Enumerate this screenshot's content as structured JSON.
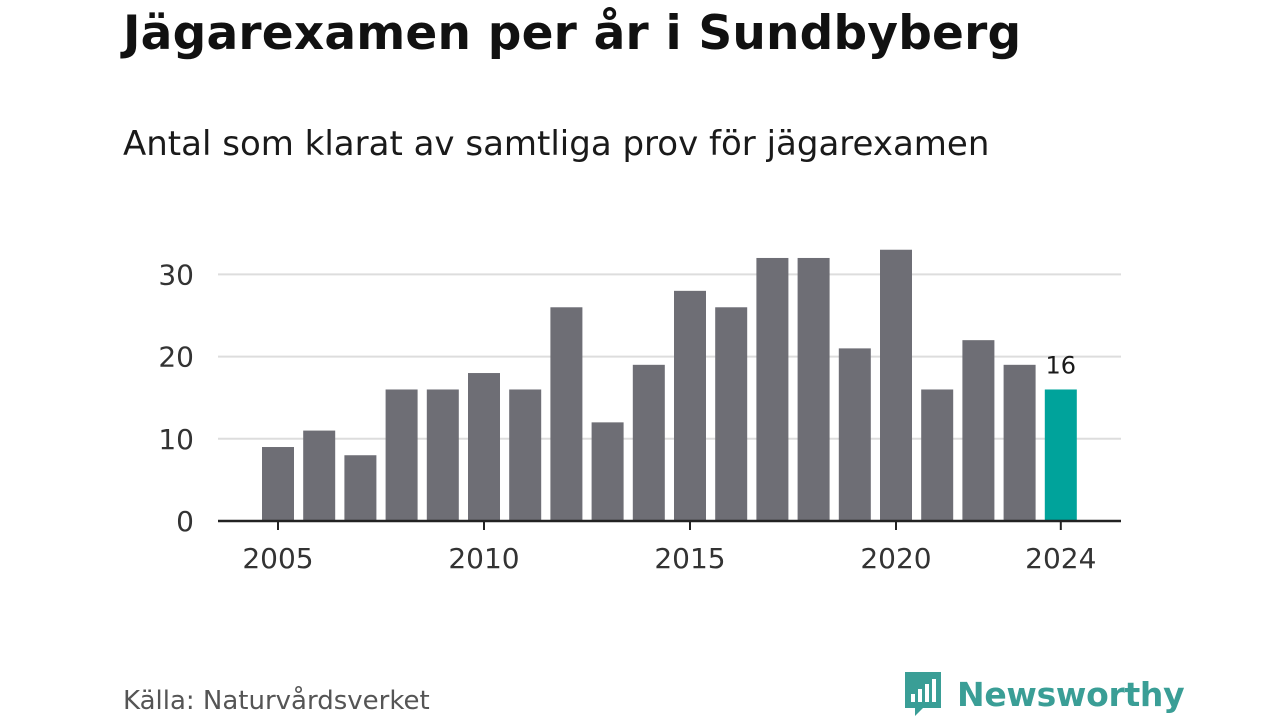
{
  "title": "Jägarexamen per år i Sundbyberg",
  "subtitle": "Antal som klarat av samtliga prov för jägarexamen",
  "source": "Källa: Naturvårdsverket",
  "brand": {
    "name": "Newsworthy",
    "color": "#3a9e96",
    "icon": "newsworthy-logo-icon"
  },
  "colors": {
    "bar": "#6e6e75",
    "highlight": "#00a39b",
    "grid": "#dddddd",
    "axis": "#222222"
  },
  "chart_data": {
    "type": "bar",
    "title": "Jägarexamen per år i Sundbyberg",
    "subtitle": "Antal som klarat av samtliga prov för jägarexamen",
    "xlabel": "",
    "ylabel": "",
    "categories": [
      2005,
      2006,
      2007,
      2008,
      2009,
      2010,
      2011,
      2012,
      2013,
      2014,
      2015,
      2016,
      2017,
      2018,
      2019,
      2020,
      2021,
      2022,
      2023,
      2024
    ],
    "values": [
      9,
      11,
      8,
      16,
      16,
      18,
      16,
      26,
      12,
      19,
      28,
      26,
      32,
      32,
      21,
      33,
      16,
      22,
      19,
      16
    ],
    "ylim": [
      0,
      35
    ],
    "yticks": [
      0,
      10,
      20,
      30
    ],
    "xticks": [
      2005,
      2010,
      2015,
      2020,
      2024
    ],
    "highlight": {
      "category": 2024,
      "label": "16"
    },
    "grid": "horizontal",
    "legend": "none"
  }
}
